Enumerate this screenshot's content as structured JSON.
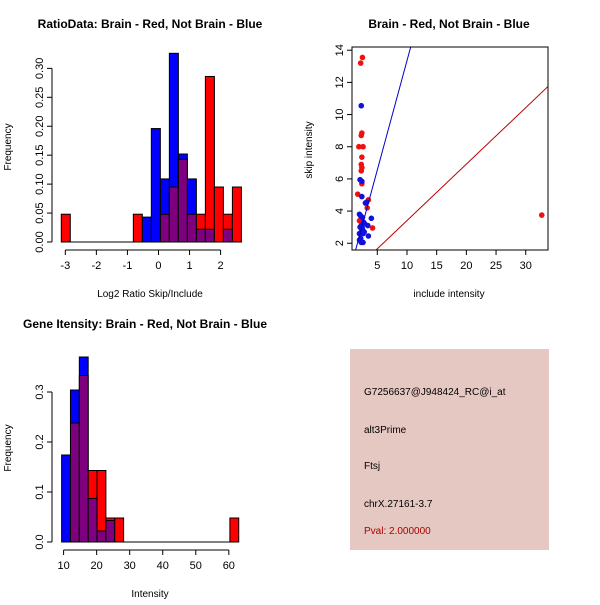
{
  "chart_data": [
    {
      "type": "bar",
      "subtype": "overlaid-histogram",
      "title": "RatioData: Brain - Red, Not Brain - Blue",
      "xlabel": "Log2 Ratio Skip/Include",
      "ylabel": "Frequency",
      "xlim": [
        -3.3,
        2.85
      ],
      "ylim": [
        0,
        0.33
      ],
      "xticks": [
        -3,
        -2,
        -1,
        0,
        1,
        2
      ],
      "yticks": [
        "0.00",
        "0.05",
        "0.10",
        "0.15",
        "0.20",
        "0.25",
        "0.30"
      ],
      "bin_start": -3.13,
      "bin_width": 0.29,
      "series": [
        {
          "name": "Brain",
          "color": "#ff0000",
          "values": {
            "0": 0.048,
            "8": 0.048,
            "11": 0.048,
            "12": 0.095,
            "13": 0.143,
            "14": 0.048,
            "15": 0.048,
            "16": 0.286,
            "17": 0.095,
            "18": 0.048,
            "19": 0.095
          }
        },
        {
          "name": "Not Brain",
          "color": "#0000ff",
          "values": {
            "9": 0.043,
            "10": 0.196,
            "11": 0.109,
            "12": 0.326,
            "13": 0.152,
            "14": 0.109,
            "15": 0.022,
            "16": 0.022,
            "18": 0.022
          }
        }
      ],
      "overlap_color": "#7f007f"
    },
    {
      "type": "scatter",
      "title": "Brain - Red, Not Brain - Blue",
      "xlabel": "include intensity",
      "ylabel": "skip intensity",
      "xlim": [
        0.74,
        33.75
      ],
      "ylim": [
        1.58,
        14.2
      ],
      "xticks": [
        5,
        10,
        15,
        20,
        25,
        30
      ],
      "yticks": [
        2,
        4,
        6,
        8,
        10,
        12,
        14
      ],
      "series": [
        {
          "name": "Brain",
          "color": "#ee1111",
          "points": [
            [
              2.5,
              13.55
            ],
            [
              2.2,
              13.2
            ],
            [
              2.4,
              8.85
            ],
            [
              2.3,
              8.7
            ],
            [
              1.9,
              8
            ],
            [
              2.6,
              8
            ],
            [
              2.4,
              7.35
            ],
            [
              2.3,
              6.9
            ],
            [
              2.4,
              6.7
            ],
            [
              2.3,
              6.5
            ],
            [
              2.4,
              5.7
            ],
            [
              1.7,
              5.05
            ],
            [
              3.5,
              4.7
            ],
            [
              3.3,
              4.2
            ],
            [
              4.2,
              2.95
            ],
            [
              32.7,
              3.75
            ],
            [
              2.0,
              3.4
            ]
          ]
        },
        {
          "name": "Not Brain",
          "color": "#1111dd",
          "points": [
            [
              2.3,
              10.55
            ],
            [
              2.1,
              5.95
            ],
            [
              2.4,
              5.85
            ],
            [
              2.4,
              4.9
            ],
            [
              3.0,
              4.5
            ],
            [
              3.2,
              4.55
            ],
            [
              4.0,
              3.55
            ],
            [
              3.5,
              2.45
            ],
            [
              2.0,
              3.8
            ],
            [
              2.2,
              3.7
            ],
            [
              2.5,
              3.6
            ],
            [
              2.7,
              3.3
            ],
            [
              2.3,
              3.1
            ],
            [
              2.9,
              3.2
            ],
            [
              3.4,
              3.1
            ],
            [
              2.1,
              3.0
            ],
            [
              2.4,
              2.8
            ],
            [
              2.0,
              2.6
            ],
            [
              2.6,
              2.6
            ],
            [
              2.2,
              2.3
            ],
            [
              2.3,
              2.05
            ],
            [
              2.6,
              2.05
            ],
            [
              2.5,
              2.9
            ],
            [
              2.8,
              2.7
            ],
            [
              2.0,
              2.2
            ]
          ]
        }
      ],
      "lines": [
        {
          "name": "Not Brain fit",
          "color": "#0000cc",
          "slope": 1.36,
          "intercept": -0.25
        },
        {
          "name": "Brain fit",
          "color": "#bb0000",
          "slope": 0.351,
          "intercept": -0.1
        }
      ]
    },
    {
      "type": "bar",
      "subtype": "overlaid-histogram",
      "title": "Gene Itensity: Brain - Red, Not Brain - Blue",
      "xlabel": "Intensity",
      "ylabel": "Frequency",
      "xlim": [
        7.7,
        65.5
      ],
      "ylim": [
        0,
        0.38
      ],
      "xticks": [
        10,
        20,
        30,
        40,
        50,
        60
      ],
      "yticks": [
        "0.0",
        "0.1",
        "0.2",
        "0.3"
      ],
      "bin_start": 9.4,
      "bin_width": 2.68,
      "series": [
        {
          "name": "Brain",
          "color": "#ff0000",
          "values": {
            "1": 0.238,
            "2": 0.333,
            "3": 0.143,
            "4": 0.143,
            "5": 0.048,
            "6": 0.048,
            "19": 0.048
          }
        },
        {
          "name": "Not Brain",
          "color": "#0000ff",
          "values": {
            "0": 0.174,
            "1": 0.304,
            "2": 0.37,
            "3": 0.087,
            "4": 0.022,
            "5": 0.043
          }
        }
      ],
      "overlap_color": "#7f007f"
    }
  ],
  "info": {
    "probe": "G7256637@J948424_RC@i_at",
    "event_type": "alt3Prime",
    "gene": "Ftsj",
    "location": "chrX.27161-3.7",
    "pval": "Pval: 2.000000",
    "pval_color": "#aa0000"
  }
}
